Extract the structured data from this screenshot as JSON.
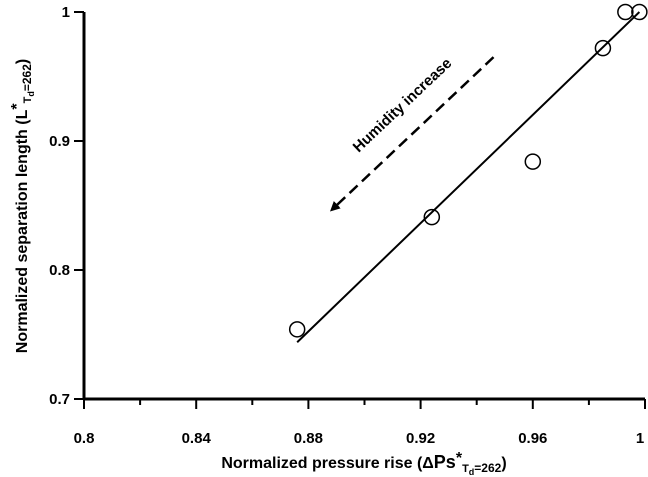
{
  "chart_data": {
    "type": "scatter",
    "xlim": [
      0.8,
      1.0
    ],
    "ylim": [
      0.7,
      1.0
    ],
    "x_ticks": [
      0.8,
      0.84,
      0.88,
      0.92,
      0.96,
      1.0
    ],
    "x_tick_labels": [
      "0.8",
      "0.84",
      "0.88",
      "0.92",
      "0.96",
      "1"
    ],
    "y_ticks": [
      0.7,
      0.8,
      0.9,
      1.0
    ],
    "y_tick_labels": [
      "0.7",
      "0.8",
      "0.9",
      "1"
    ],
    "xlabel": {
      "prefix": "Normalized pressure rise (",
      "delta": "Δ",
      "symbol": "Ps",
      "star": "*",
      "T": "T",
      "d": "d",
      "eq": "=262",
      "suffix": ")"
    },
    "ylabel": {
      "prefix": "Normalized separation length (",
      "symbol": "L",
      "star": "*",
      "T": "T",
      "d": "d",
      "eq": "=262",
      "suffix": ")"
    },
    "series": [
      {
        "points": [
          {
            "x": 0.876,
            "y": 0.754
          },
          {
            "x": 0.924,
            "y": 0.841
          },
          {
            "x": 0.96,
            "y": 0.884
          },
          {
            "x": 0.985,
            "y": 0.972
          },
          {
            "x": 0.993,
            "y": 1.0
          },
          {
            "x": 0.998,
            "y": 1.0
          }
        ],
        "marker": "open-circle"
      }
    ],
    "fit_line": {
      "x": [
        0.876,
        0.998
      ],
      "y": [
        0.744,
        1.0
      ]
    },
    "annotation": {
      "text": "Humidity increase",
      "arrow": {
        "from": {
          "x": 0.946,
          "y": 0.965
        },
        "to": {
          "x": 0.889,
          "y": 0.848
        },
        "style": "dashed"
      }
    },
    "grid": false,
    "legend": "none"
  }
}
